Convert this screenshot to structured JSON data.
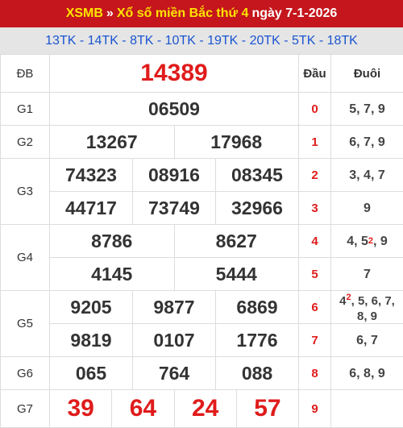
{
  "header": {
    "site": "XSMB",
    "separator": "»",
    "region_link": "Xổ số miền Bắc thứ 4",
    "date_text": "ngày 7-1-2026"
  },
  "codes": "13TK - 14TK - 8TK - 10TK - 19TK - 20TK - 5TK - 18TK",
  "prizes": {
    "db": {
      "label": "ĐB",
      "numbers": [
        "14389"
      ]
    },
    "g1": {
      "label": "G1",
      "numbers": [
        "06509"
      ]
    },
    "g2": {
      "label": "G2",
      "numbers": [
        "13267",
        "17968"
      ]
    },
    "g3": {
      "label": "G3",
      "numbers": [
        "74323",
        "08916",
        "08345",
        "44717",
        "73749",
        "32966"
      ]
    },
    "g4": {
      "label": "G4",
      "numbers": [
        "8786",
        "8627",
        "4145",
        "5444"
      ]
    },
    "g5": {
      "label": "G5",
      "numbers": [
        "9205",
        "9877",
        "6869",
        "9819",
        "0107",
        "1776"
      ]
    },
    "g6": {
      "label": "G6",
      "numbers": [
        "065",
        "764",
        "088"
      ]
    },
    "g7": {
      "label": "G7",
      "numbers": [
        "39",
        "64",
        "24",
        "57"
      ]
    }
  },
  "loto": {
    "head_label": "Đầu",
    "tail_label": "Đuôi",
    "rows": [
      {
        "dau": "0",
        "duoi": "5, 7, 9"
      },
      {
        "dau": "1",
        "duoi": "6, 7, 9"
      },
      {
        "dau": "2",
        "duoi": "3, 4, 7"
      },
      {
        "dau": "3",
        "duoi": "9"
      },
      {
        "dau": "4",
        "duoi_pre": "4, 5",
        "duoi_sup": "2",
        "duoi_post": ", 9"
      },
      {
        "dau": "5",
        "duoi": "7"
      },
      {
        "dau": "6",
        "duoi_pre": "4",
        "duoi_sup": "2",
        "duoi_post": ", 5, 6, 7, 8, 9"
      },
      {
        "dau": "7",
        "duoi": "6, 7"
      },
      {
        "dau": "8",
        "duoi": "6, 8, 9"
      },
      {
        "dau": "9",
        "duoi": ""
      }
    ]
  },
  "colors": {
    "title_bg": "#c4161c",
    "title_link": "#ffe300",
    "codes_text": "#1a55d0",
    "accent_red": "#e01b1b"
  }
}
